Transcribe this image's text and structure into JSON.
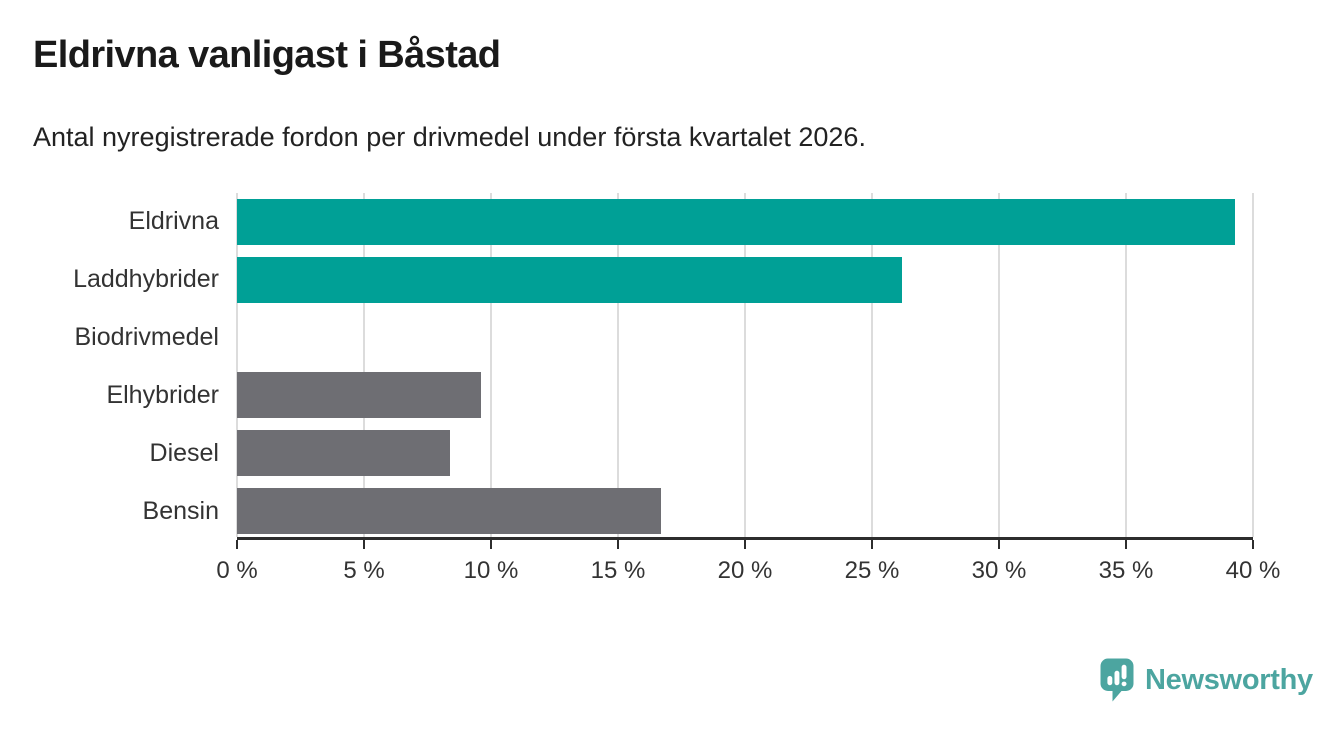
{
  "header": {
    "title": "Eldrivna vanligast i Båstad",
    "subtitle": "Antal nyregistrerade fordon per drivmedel under första kvartalet 2026."
  },
  "chart_data": {
    "type": "bar",
    "orientation": "horizontal",
    "title": "Eldrivna vanligast i Båstad",
    "subtitle": "Antal nyregistrerade fordon per drivmedel under första kvartalet 2026.",
    "categories": [
      "Eldrivna",
      "Laddhybrider",
      "Biodrivmedel",
      "Elhybrider",
      "Diesel",
      "Bensin"
    ],
    "values": [
      39.3,
      26.2,
      0,
      9.6,
      8.4,
      16.7
    ],
    "unit": "%",
    "xlabel": "",
    "ylabel": "",
    "xlim": [
      0,
      40
    ],
    "x_ticks": [
      0,
      5,
      10,
      15,
      20,
      25,
      30,
      35,
      40
    ],
    "x_tick_labels": [
      "0 %",
      "5 %",
      "10 %",
      "15 %",
      "20 %",
      "25 %",
      "30 %",
      "35 %",
      "40 %"
    ],
    "grid": true,
    "legend_position": "none",
    "bar_colors": [
      "#00a096",
      "#00a096",
      "#00a096",
      "#6e6e73",
      "#6e6e73",
      "#6e6e73"
    ]
  },
  "branding": {
    "logo_text": "Newsworthy",
    "logo_icon": "newsworthy-speech-bubble-bar-chart-icon",
    "logo_color": "#4ca5a0"
  },
  "colors": {
    "bar_highlight": "#00a096",
    "bar_default": "#6e6e73",
    "axis": "#2d2d2d",
    "gridline": "#dcdcdc",
    "title_text": "#1a1a1a",
    "body_text": "#333333",
    "background": "#ffffff"
  }
}
